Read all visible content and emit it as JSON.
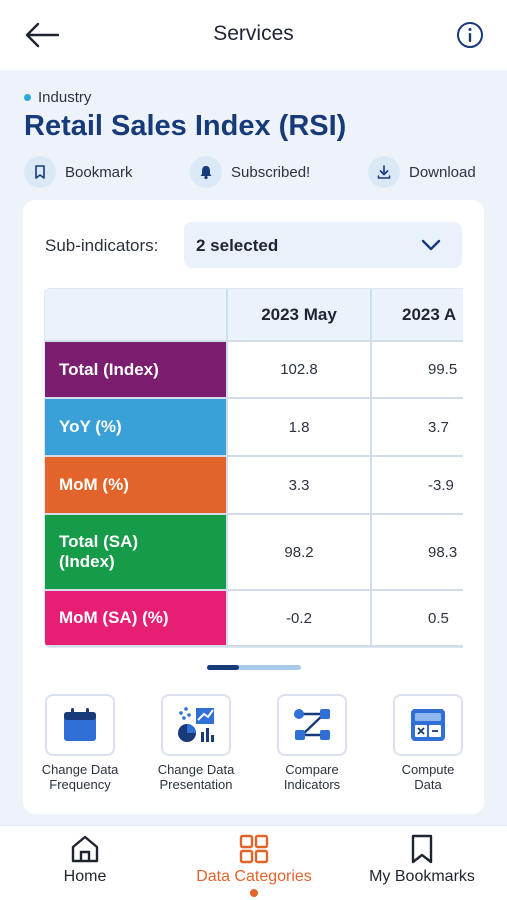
{
  "header": {
    "title": "Services"
  },
  "breadcrumb": {
    "category": "Industry"
  },
  "page": {
    "title": "Retail Sales Index (RSI)"
  },
  "actions": [
    {
      "label": "Bookmark",
      "icon": "bookmark-icon"
    },
    {
      "label": "Subscribed!",
      "icon": "bell-icon"
    },
    {
      "label": "Download",
      "icon": "download-icon"
    }
  ],
  "subindicators": {
    "label": "Sub-indicators:",
    "value": "2 selected"
  },
  "table": {
    "columns": [
      "2023 May",
      "2023 A"
    ],
    "rows": [
      {
        "label": "Total (Index)",
        "color": "#7b1e70",
        "values": [
          "102.8",
          "99.5"
        ]
      },
      {
        "label": "YoY (%)",
        "color": "#3aa0d8",
        "values": [
          "1.8",
          "3.7"
        ]
      },
      {
        "label": "MoM (%)",
        "color": "#e3642a",
        "values": [
          "3.3",
          "-3.9"
        ]
      },
      {
        "label": "Total (SA) (Index)",
        "color": "#169b48",
        "values": [
          "98.2",
          "98.3"
        ]
      },
      {
        "label": "MoM (SA) (%)",
        "color": "#e61f74",
        "values": [
          "-0.2",
          "0.5"
        ]
      }
    ],
    "scroll_position": 0.34
  },
  "tools": [
    {
      "label_lines": [
        "Change Data",
        "Frequency"
      ],
      "icon": "calendar-icon"
    },
    {
      "label_lines": [
        "Change Data",
        "Presentation"
      ],
      "icon": "chart-presentation-icon"
    },
    {
      "label_lines": [
        "Compare",
        "Indicators"
      ],
      "icon": "compare-nodes-icon"
    },
    {
      "label_lines": [
        "Compute",
        "Data"
      ],
      "icon": "calculator-icon"
    }
  ],
  "bottom_nav": [
    {
      "label": "Home",
      "icon": "home-icon",
      "active": false
    },
    {
      "label": "Data Categories",
      "icon": "grid-icon",
      "active": true
    },
    {
      "label": "My Bookmarks",
      "icon": "bookmark-icon",
      "active": false
    }
  ],
  "colors": {
    "primary": "#173a78",
    "accent": "#e3642a",
    "icon_blue": "#2f6fd6"
  }
}
